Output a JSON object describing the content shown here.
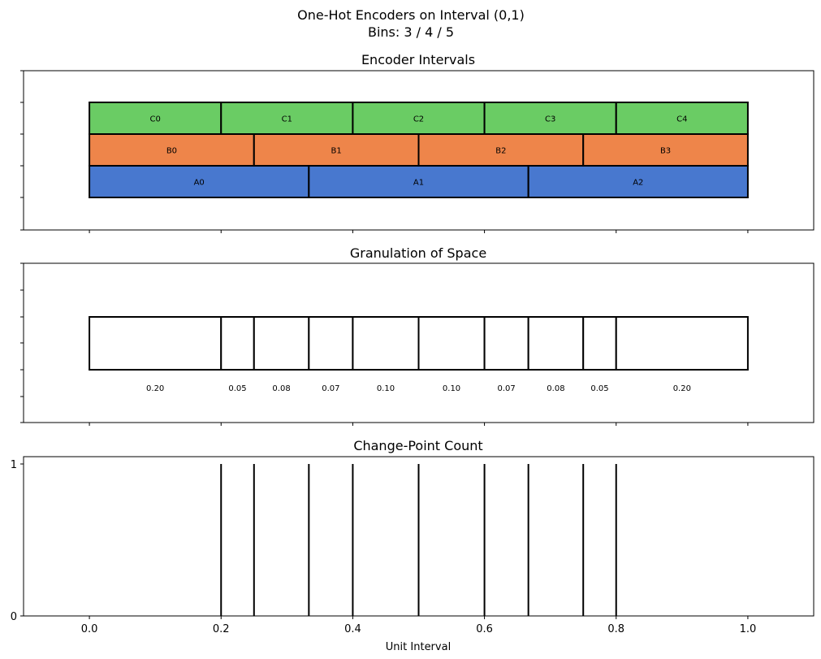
{
  "figure": {
    "title_line1": "One-Hot Encoders on Interval (0,1)",
    "title_line2": "Bins: 3 / 4 / 5"
  },
  "chart_data": {
    "type": "multi-panel",
    "xlim": [
      -0.1,
      1.1
    ],
    "xticks": [
      "0.0",
      "0.2",
      "0.4",
      "0.6",
      "0.8",
      "1.0"
    ],
    "xlabel": "Unit Interval",
    "panels": [
      {
        "type": "bar",
        "title": "Encoder Intervals",
        "encoders": [
          {
            "name": "A",
            "bins": 3,
            "color": "#4878cf",
            "cells": [
              {
                "label": "A0",
                "start": 0.0,
                "end": 0.3333
              },
              {
                "label": "A1",
                "start": 0.3333,
                "end": 0.6667
              },
              {
                "label": "A2",
                "start": 0.6667,
                "end": 1.0
              }
            ]
          },
          {
            "name": "B",
            "bins": 4,
            "color": "#ee854a",
            "cells": [
              {
                "label": "B0",
                "start": 0.0,
                "end": 0.25
              },
              {
                "label": "B1",
                "start": 0.25,
                "end": 0.5
              },
              {
                "label": "B2",
                "start": 0.5,
                "end": 0.75
              },
              {
                "label": "B3",
                "start": 0.75,
                "end": 1.0
              }
            ]
          },
          {
            "name": "C",
            "bins": 5,
            "color": "#6acc64",
            "cells": [
              {
                "label": "C0",
                "start": 0.0,
                "end": 0.2
              },
              {
                "label": "C1",
                "start": 0.2,
                "end": 0.4
              },
              {
                "label": "C2",
                "start": 0.4,
                "end": 0.6
              },
              {
                "label": "C3",
                "start": 0.6,
                "end": 0.8
              },
              {
                "label": "C4",
                "start": 0.8,
                "end": 1.0
              }
            ]
          }
        ]
      },
      {
        "type": "bar",
        "title": "Granulation of Space",
        "boundaries": [
          0.0,
          0.2,
          0.25,
          0.3333,
          0.4,
          0.5,
          0.6,
          0.6667,
          0.75,
          0.8,
          1.0
        ],
        "width_labels": [
          "0.20",
          "0.05",
          "0.08",
          "0.07",
          "0.10",
          "0.10",
          "0.07",
          "0.08",
          "0.05",
          "0.20"
        ]
      },
      {
        "type": "bar",
        "title": "Change-Point Count",
        "ylim": [
          0,
          1
        ],
        "yticks": [
          "0",
          "1"
        ],
        "change_points": [
          0.2,
          0.25,
          0.3333,
          0.4,
          0.5,
          0.6,
          0.6667,
          0.75,
          0.8
        ],
        "counts": [
          1,
          1,
          1,
          1,
          1,
          1,
          1,
          1,
          1
        ]
      }
    ]
  }
}
